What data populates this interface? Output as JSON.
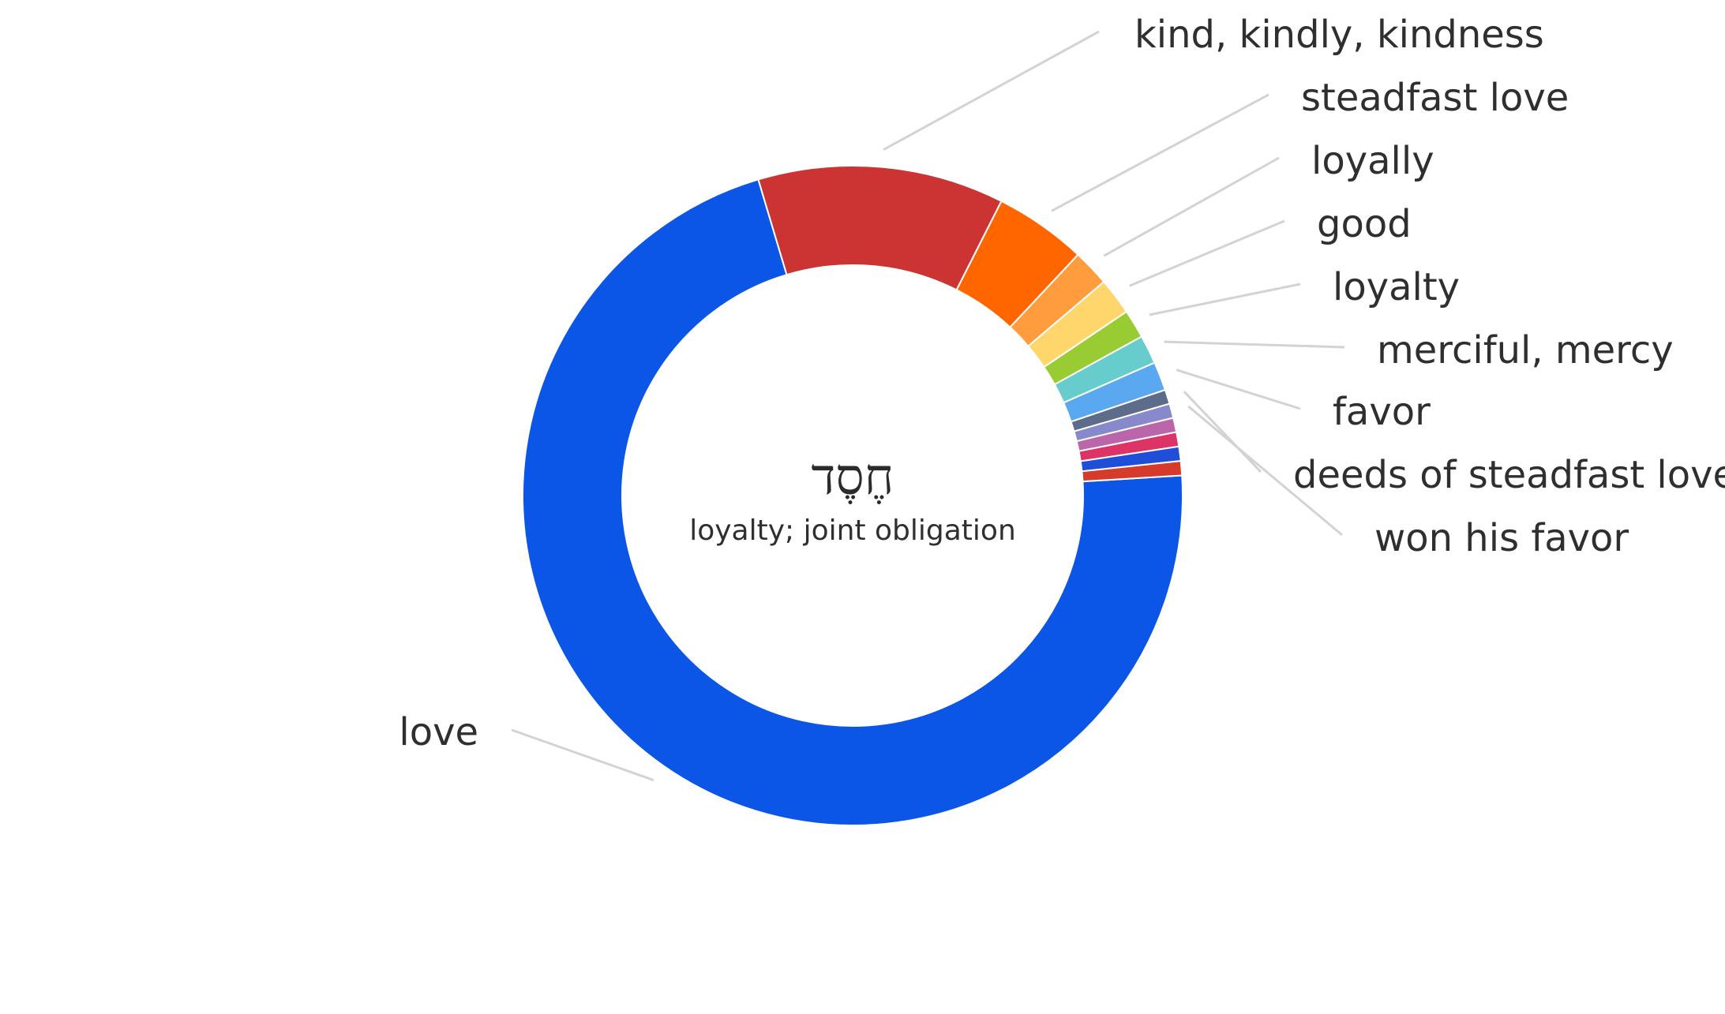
{
  "chart_data": {
    "type": "pie",
    "variant": "donut",
    "center_title": "חֶסֶד",
    "center_subtitle": "loyalty; joint obligation",
    "slices": [
      {
        "label": "love",
        "value": 71.0,
        "color": "#0b56e6"
      },
      {
        "label": "kind, kindly, kindness",
        "value": 12.0,
        "color": "#cc3333"
      },
      {
        "label": "steadfast love",
        "value": 4.5,
        "color": "#ff6600"
      },
      {
        "label": "loyally",
        "value": 1.8,
        "color": "#ff9c3d"
      },
      {
        "label": "good",
        "value": 1.8,
        "color": "#ffd66b"
      },
      {
        "label": "loyalty",
        "value": 1.4,
        "color": "#99cc33"
      },
      {
        "label": "merciful, mercy",
        "value": 1.4,
        "color": "#66cccc"
      },
      {
        "label": "favor",
        "value": 1.4,
        "color": "#5aa9f0"
      },
      {
        "label": "deeds of steadfast love",
        "value": 0.7,
        "color": "#5c6c8a"
      },
      {
        "label": "won his favor",
        "value": 0.7,
        "color": "#8888cc"
      },
      {
        "label": "",
        "value": 0.7,
        "color": "#bb66aa"
      },
      {
        "label": "",
        "value": 0.7,
        "color": "#dd3366"
      },
      {
        "label": "",
        "value": 0.7,
        "color": "#1f4fd8"
      },
      {
        "label": "",
        "value": 0.7,
        "color": "#d63a2a"
      }
    ],
    "legend": "none",
    "labels": "outside with leader lines"
  }
}
